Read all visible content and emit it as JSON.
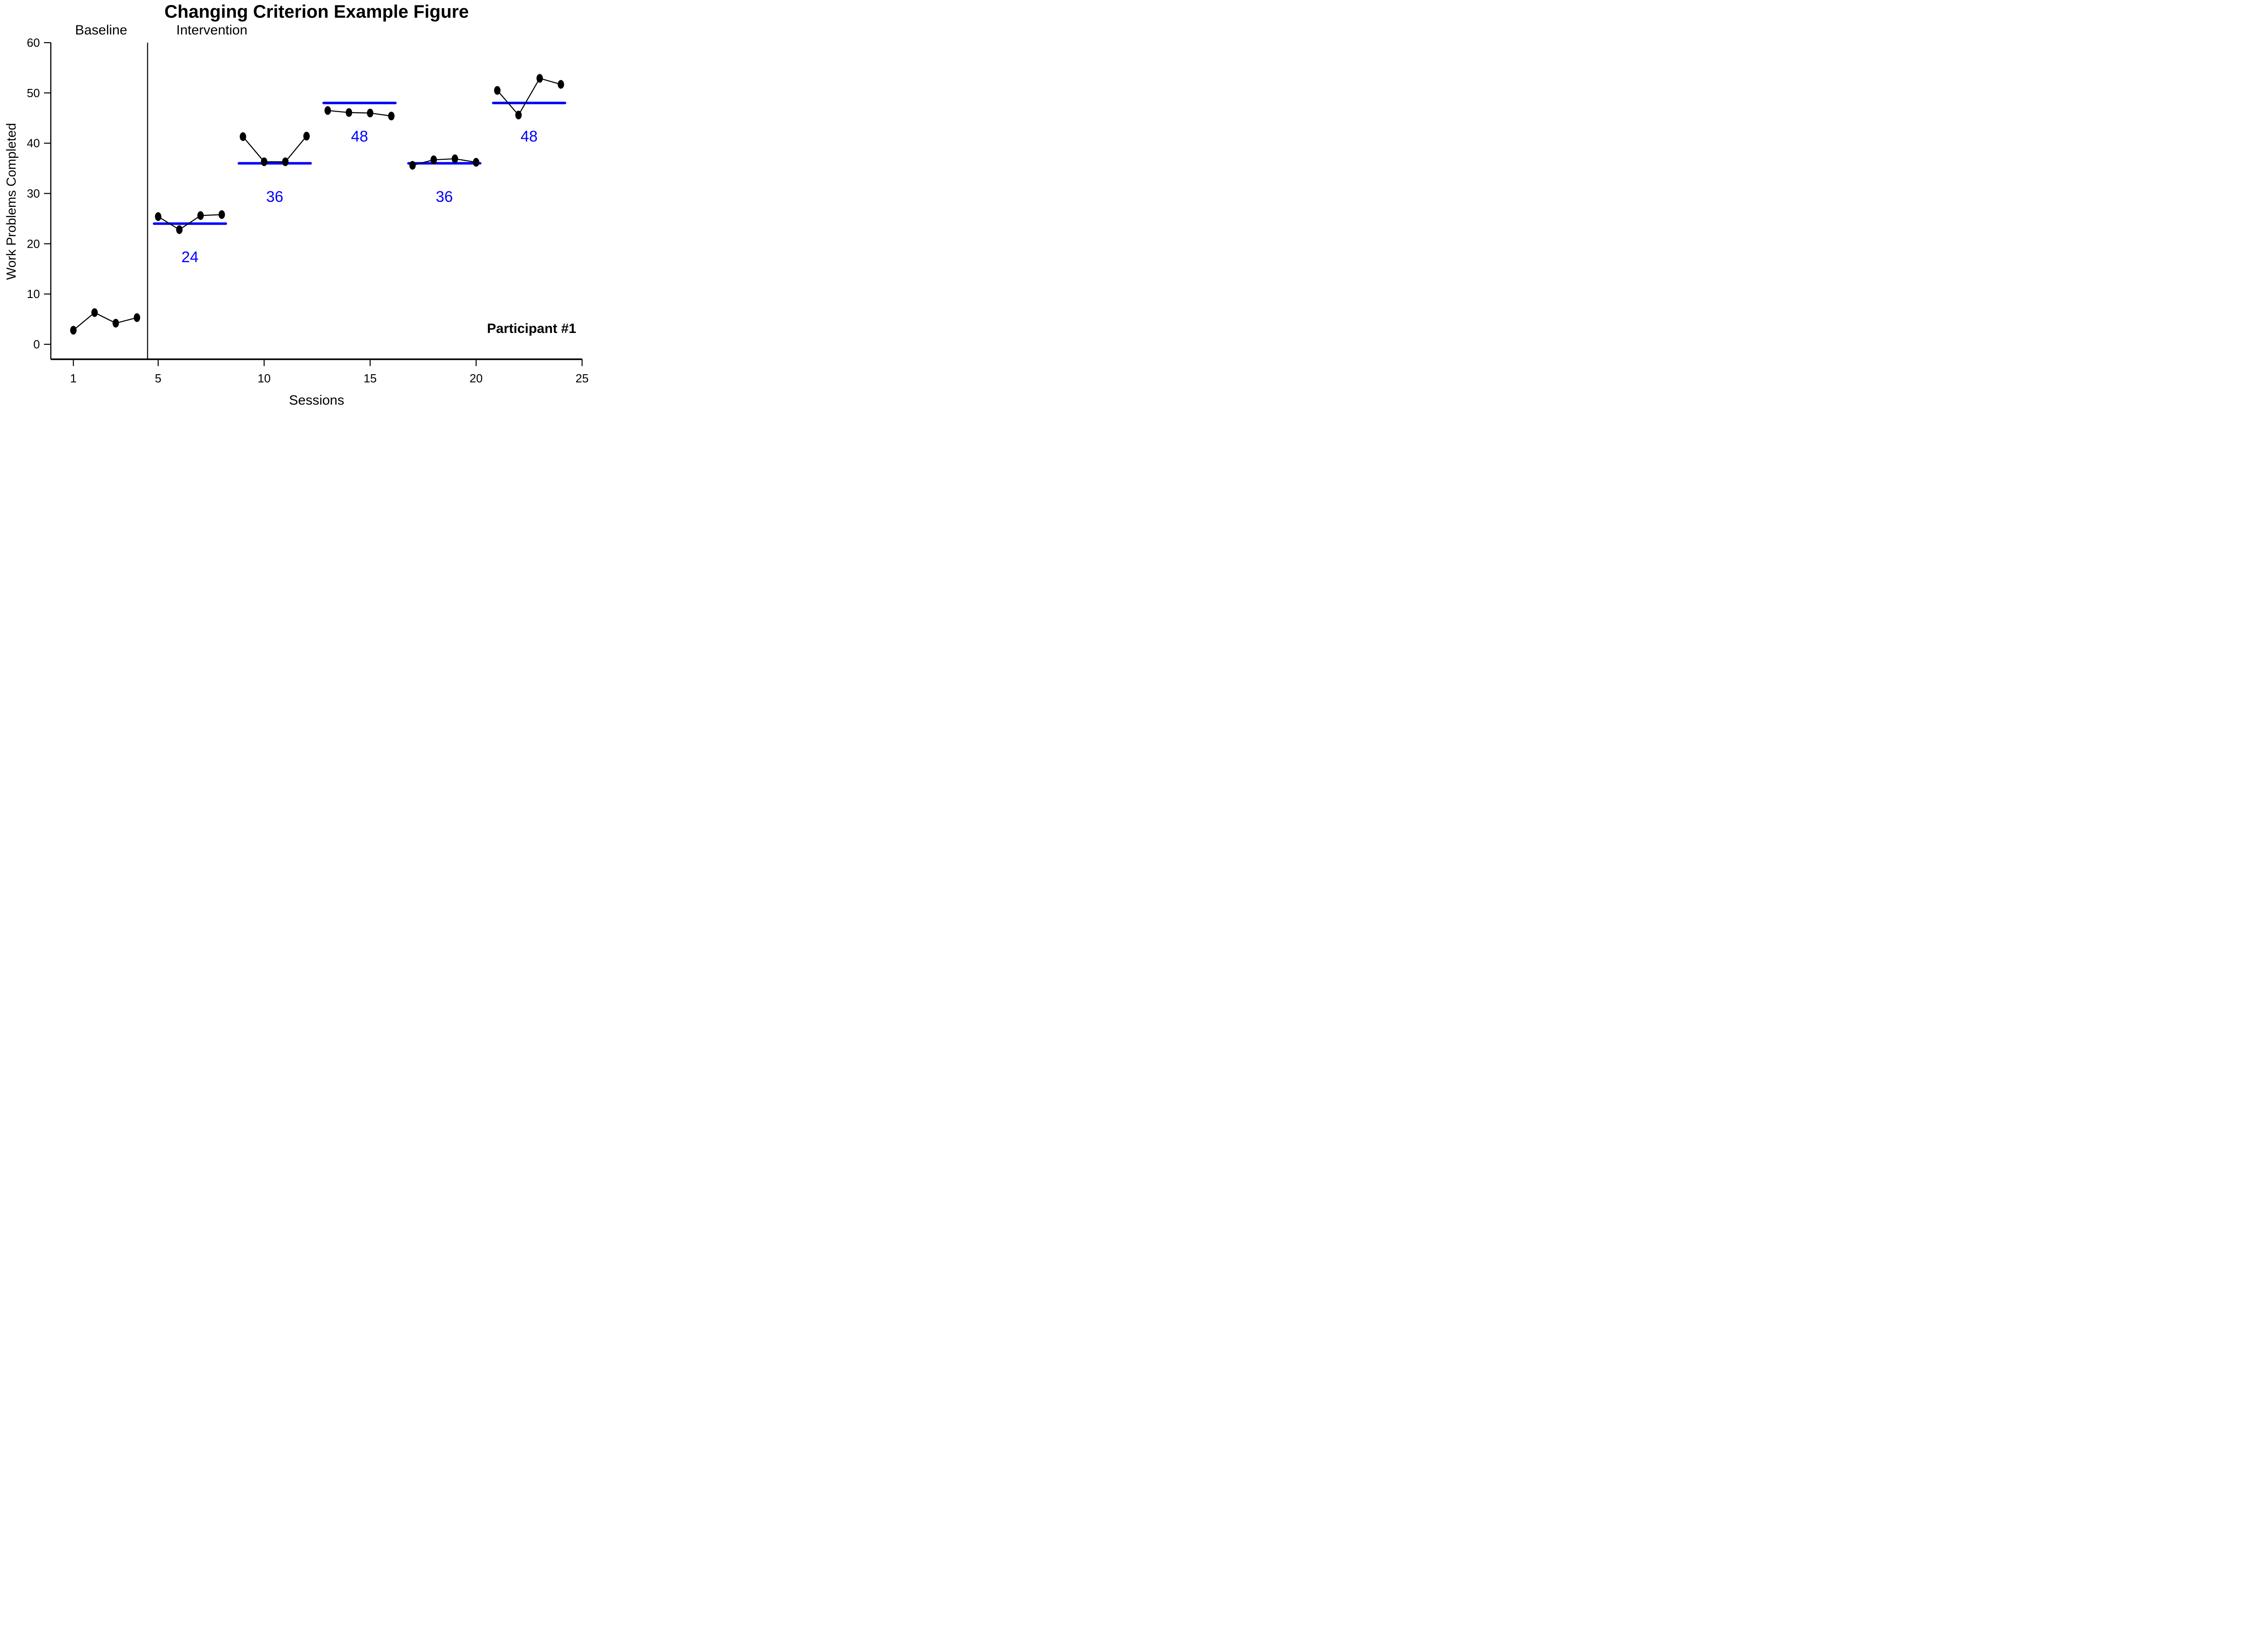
{
  "figure": {
    "title": "Changing Criterion Example Figure",
    "xlabel": "Sessions",
    "ylabel": "Work Problems Completed",
    "phase_label_baseline": "Baseline",
    "phase_label_intervention": "Intervention",
    "participant_label": "Participant #1"
  },
  "chart_data": {
    "type": "line",
    "title": "Changing Criterion Example Figure",
    "xlabel": "Sessions",
    "ylabel": "Work Problems Completed",
    "xlim": [
      1,
      25
    ],
    "ylim": [
      0,
      60
    ],
    "x_ticks": [
      1,
      5,
      10,
      15,
      20,
      25
    ],
    "y_ticks": [
      0,
      10,
      20,
      30,
      40,
      50,
      60
    ],
    "grid": false,
    "legend": "none",
    "phase_change_after_session": 4.5,
    "phase_labels": [
      "Baseline",
      "Intervention"
    ],
    "annotation": "Participant #1",
    "colors": {
      "data": "#000000",
      "criterion": "#0000ff",
      "axis": "#000000"
    },
    "marker": "filled-dot",
    "segments": [
      {
        "phase": "Baseline",
        "sessions": [
          1,
          2,
          3,
          4
        ],
        "values": [
          2.8,
          6.3,
          4.2,
          5.3
        ],
        "criterion": null,
        "criterion_label": ""
      },
      {
        "phase": "Intervention",
        "sessions": [
          5,
          6,
          7,
          8
        ],
        "values": [
          25.4,
          22.8,
          25.6,
          25.8
        ],
        "criterion": 24,
        "criterion_label": "24"
      },
      {
        "phase": "Intervention",
        "sessions": [
          9,
          10,
          11,
          12
        ],
        "values": [
          41.3,
          36.3,
          36.3,
          41.4
        ],
        "criterion": 36,
        "criterion_label": "36"
      },
      {
        "phase": "Intervention",
        "sessions": [
          13,
          14,
          15,
          16
        ],
        "values": [
          46.5,
          46.1,
          46,
          45.4
        ],
        "criterion": 48,
        "criterion_label": "48"
      },
      {
        "phase": "Intervention",
        "sessions": [
          17,
          18,
          19,
          20
        ],
        "values": [
          35.6,
          36.7,
          36.9,
          36.2
        ],
        "criterion": 36,
        "criterion_label": "36"
      },
      {
        "phase": "Intervention",
        "sessions": [
          21,
          22,
          23,
          24
        ],
        "values": [
          50.5,
          45.6,
          52.9,
          51.7
        ],
        "criterion": 48,
        "criterion_label": "48"
      }
    ]
  }
}
